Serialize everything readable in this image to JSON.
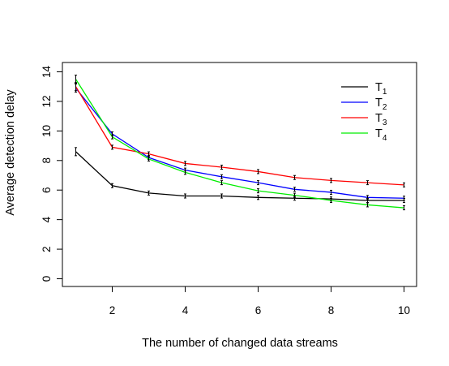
{
  "chart_data": {
    "type": "line",
    "title": "",
    "xlabel": "The number of changed data streams",
    "ylabel": "Average detection delay",
    "xlim": [
      1,
      10
    ],
    "ylim": [
      0,
      14
    ],
    "x_ticks": [
      "2",
      "4",
      "6",
      "8",
      "10"
    ],
    "y_ticks": [
      "0",
      "2",
      "4",
      "6",
      "8",
      "10",
      "12",
      "14"
    ],
    "grid": false,
    "legend_position": "top-right",
    "error_bars": true,
    "x": [
      1,
      2,
      3,
      4,
      5,
      6,
      7,
      8,
      9,
      10
    ],
    "series": [
      {
        "name": "T",
        "subscript": "1",
        "color": "#000000",
        "values": [
          8.6,
          6.3,
          5.8,
          5.6,
          5.6,
          5.5,
          5.45,
          5.4,
          5.3,
          5.3
        ]
      },
      {
        "name": "T",
        "subscript": "2",
        "color": "#0000ff",
        "values": [
          12.9,
          9.8,
          8.2,
          7.35,
          6.9,
          6.5,
          6.05,
          5.85,
          5.5,
          5.45
        ]
      },
      {
        "name": "T",
        "subscript": "3",
        "color": "#ff0000",
        "values": [
          13.0,
          8.9,
          8.45,
          7.8,
          7.55,
          7.25,
          6.85,
          6.65,
          6.5,
          6.35
        ]
      },
      {
        "name": "T",
        "subscript": "4",
        "color": "#00ee00",
        "values": [
          13.5,
          9.6,
          8.1,
          7.2,
          6.5,
          5.95,
          5.65,
          5.3,
          5.0,
          4.8
        ]
      }
    ]
  }
}
